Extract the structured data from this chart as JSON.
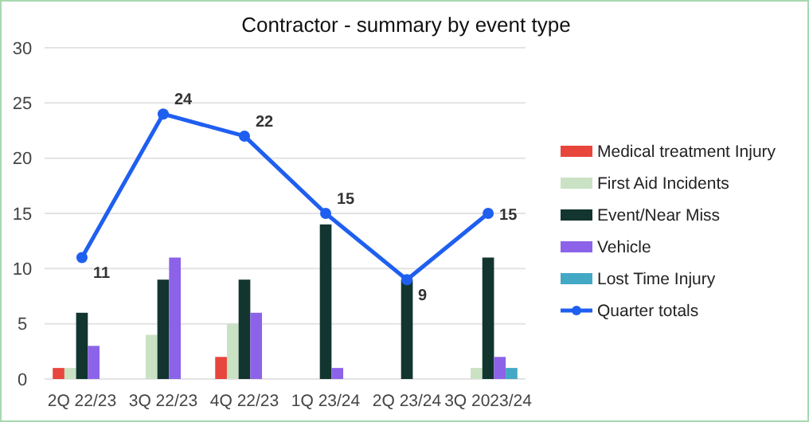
{
  "chart_data": {
    "type": "bar",
    "title": "Contractor - summary by event type",
    "categories": [
      "2Q 22/23",
      "3Q 22/23",
      "4Q 22/23",
      "1Q 23/24",
      "2Q 23/24",
      "3Q 2023/24"
    ],
    "series": [
      {
        "name": "Medical treatment Injury",
        "color": "#e8453c",
        "values": [
          1,
          0,
          2,
          0,
          0,
          0
        ]
      },
      {
        "name": "First Aid Incidents",
        "color": "#c9e2c4",
        "values": [
          1,
          4,
          5,
          0,
          0,
          1
        ]
      },
      {
        "name": "Event/Near Miss",
        "color": "#123530",
        "values": [
          6,
          9,
          9,
          14,
          9,
          11
        ]
      },
      {
        "name": "Vehicle",
        "color": "#8c63e8",
        "values": [
          3,
          11,
          6,
          1,
          0,
          2
        ]
      },
      {
        "name": "Lost Time Injury",
        "color": "#42a8c4",
        "values": [
          0,
          0,
          0,
          0,
          0,
          1
        ]
      },
      {
        "name": "Quarter totals",
        "type": "line",
        "color": "#1f5ff0",
        "marker": "circle",
        "values": [
          11,
          24,
          22,
          15,
          9,
          15
        ],
        "value_labels": [
          "11",
          "24",
          "22",
          "15",
          "9",
          "15"
        ]
      }
    ],
    "ylim": [
      0,
      30
    ],
    "yticks": [
      0,
      5,
      10,
      15,
      20,
      25,
      30
    ],
    "grid": "y",
    "legend": "right"
  }
}
